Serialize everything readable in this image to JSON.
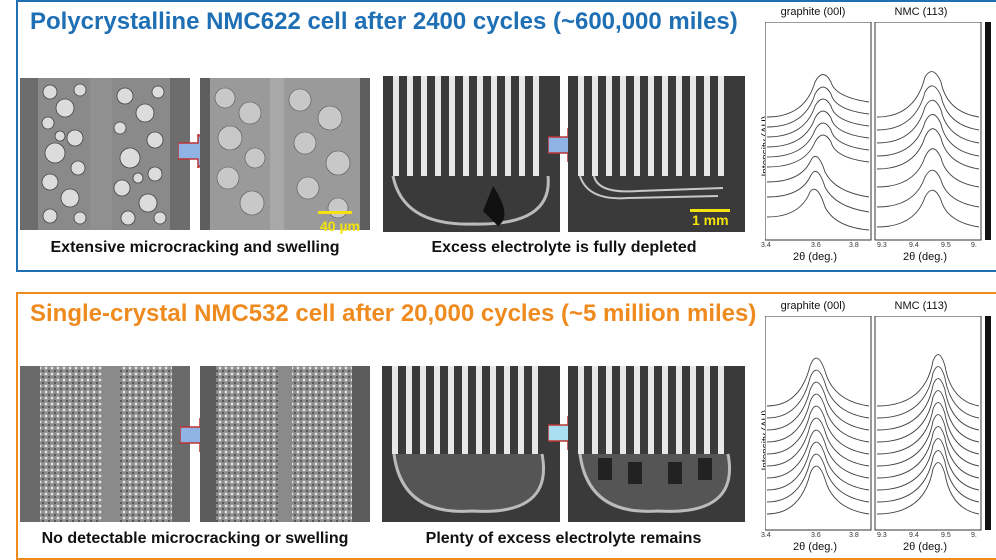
{
  "top": {
    "title": "Polycrystalline NMC622 cell after 2400 cycles (~600,000 miles)",
    "caption_left": "Extensive microcracking and swelling",
    "caption_right": "Excess electrolyte is fully depleted",
    "scalebar_micro": "40 µm",
    "scalebar_cell": "1 mm",
    "accent_color": "#1f6fb5"
  },
  "bottom": {
    "title": "Single-crystal NMC532 cell after 20,000 cycles (~5 million miles)",
    "caption_left": "No detectable microcracking or swelling",
    "caption_right": "Plenty of excess electrolyte remains",
    "accent_color": "#ef8a1f"
  },
  "xrd": {
    "graphite_title": "graphite (00l)",
    "nmc_title": "NMC (113)",
    "ylabel": "Intensity (AU)",
    "xlabel": "2θ (deg.)",
    "graphite_ticks": [
      "3.4",
      "3.6",
      "3.8"
    ],
    "nmc_ticks": [
      "9.3",
      "9.4",
      "9.5",
      "9."
    ]
  },
  "arrow_color": "#8fb4e3"
}
